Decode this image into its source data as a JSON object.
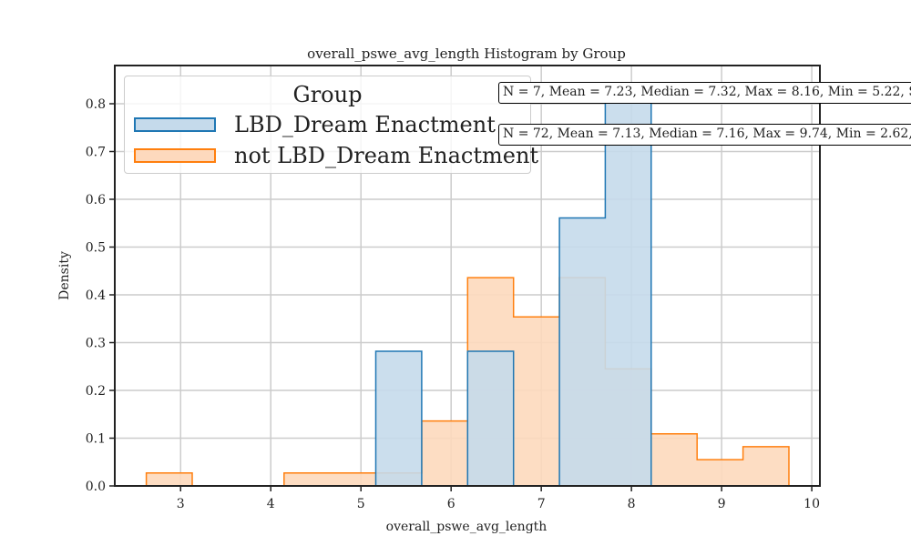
{
  "chart_data": {
    "type": "bar",
    "title": "overall_pswe_avg_length Histogram by Group",
    "xlabel": "overall_pswe_avg_length",
    "ylabel": "Density",
    "xlim": [
      2.27,
      10.09
    ],
    "ylim": [
      0,
      0.88
    ],
    "xticks": [
      3,
      4,
      5,
      6,
      7,
      8,
      9,
      10
    ],
    "yticks": [
      0.0,
      0.1,
      0.2,
      0.3,
      0.4,
      0.5,
      0.6,
      0.7,
      0.8
    ],
    "grid": true,
    "legend": {
      "title": "Group",
      "position": "top-left"
    },
    "series": [
      {
        "name": "not LBD_Dream Enactment",
        "color": "#ff7f0e",
        "fill": "#fdd9bd",
        "bin_edges": [
          2.62,
          3.129,
          3.638,
          4.147,
          4.656,
          5.165,
          5.674,
          6.183,
          6.692,
          7.201,
          7.71,
          8.219,
          8.728,
          9.237,
          9.746
        ],
        "densities": [
          0.027,
          0.0,
          0.0,
          0.027,
          0.027,
          0.027,
          0.136,
          0.436,
          0.354,
          0.436,
          0.245,
          0.109,
          0.055,
          0.082
        ]
      },
      {
        "name": "LBD_Dream Enactment",
        "color": "#1f77b4",
        "fill": "#c5daeb",
        "bin_edges": [
          5.165,
          5.674,
          6.183,
          6.692,
          7.201,
          7.71,
          8.219
        ],
        "densities": [
          0.282,
          0.0,
          0.282,
          0.0,
          0.561,
          0.842
        ]
      }
    ],
    "annotations": [
      "N = 7, Mean = 7.23, Median = 7.32, Max = 8.16, Min = 5.22, S",
      "N = 72, Mean = 7.13, Median = 7.16, Max = 9.74, Min = 2.62,"
    ]
  }
}
